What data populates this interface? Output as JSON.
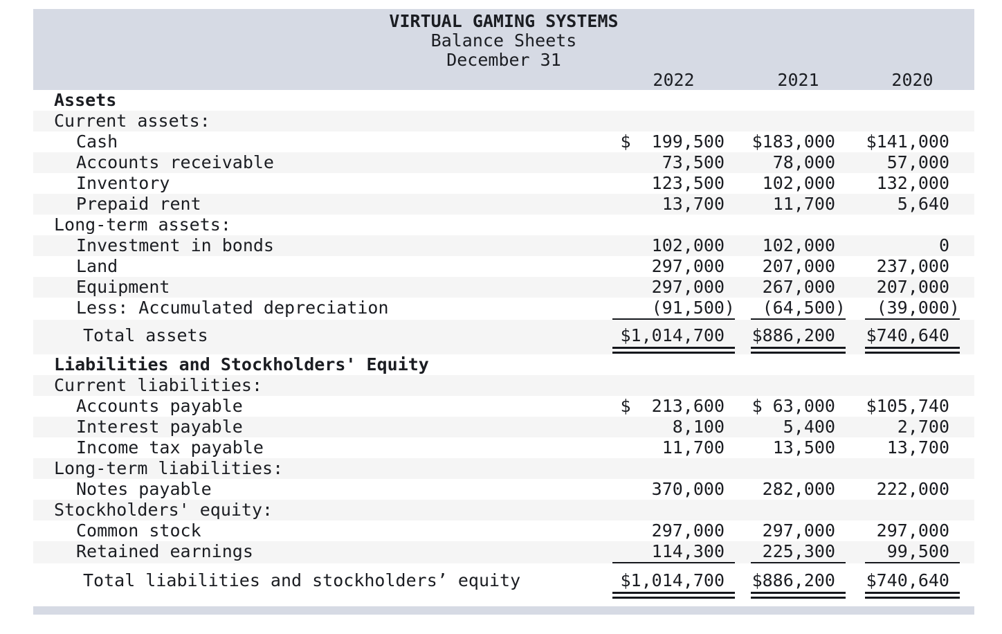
{
  "header": {
    "company": "VIRTUAL GAMING SYSTEMS",
    "statement": "Balance Sheets",
    "date": "December 31"
  },
  "columns": [
    "2022",
    "2021",
    "2020"
  ],
  "colors": {
    "band": "#d6dae4",
    "stripe": "#f5f5f5",
    "text": "#1b1d22",
    "rule": "#15171c"
  },
  "rows": [
    {
      "type": "section",
      "shade": false,
      "label": "Assets"
    },
    {
      "type": "subsection",
      "shade": true,
      "label": "Current assets:"
    },
    {
      "type": "item",
      "shade": false,
      "label": "Cash",
      "values": [
        "$  199,500",
        "$183,000",
        "$141,000"
      ]
    },
    {
      "type": "item",
      "shade": true,
      "label": "Accounts receivable",
      "values": [
        "73,500",
        "78,000",
        "57,000"
      ]
    },
    {
      "type": "item",
      "shade": false,
      "label": "Inventory",
      "values": [
        "123,500",
        "102,000",
        "132,000"
      ]
    },
    {
      "type": "item",
      "shade": true,
      "label": "Prepaid rent",
      "values": [
        "13,700",
        "11,700",
        "5,640"
      ]
    },
    {
      "type": "subsection",
      "shade": false,
      "label": "Long-term assets:"
    },
    {
      "type": "item",
      "shade": true,
      "label": "Investment in bonds",
      "values": [
        "102,000",
        "102,000",
        "0"
      ]
    },
    {
      "type": "item",
      "shade": false,
      "label": "Land",
      "values": [
        "297,000",
        "207,000",
        "237,000"
      ]
    },
    {
      "type": "item",
      "shade": true,
      "label": "Equipment",
      "values": [
        "297,000",
        "267,000",
        "207,000"
      ]
    },
    {
      "type": "item",
      "rule": true,
      "shade": false,
      "label": "Less: Accumulated depreciation",
      "values": [
        "(91,500)",
        "(64,500)",
        "(39,000)"
      ]
    },
    {
      "type": "total",
      "shade": true,
      "label": "Total assets",
      "values": [
        "$1,014,700",
        "$886,200",
        "$740,640"
      ]
    },
    {
      "type": "section",
      "shade": false,
      "label": "Liabilities and Stockholders' Equity"
    },
    {
      "type": "subsection",
      "shade": true,
      "label": "Current liabilities:"
    },
    {
      "type": "item",
      "shade": false,
      "label": "Accounts payable",
      "values": [
        "$  213,600",
        "$ 63,000",
        "$105,740"
      ]
    },
    {
      "type": "item",
      "shade": true,
      "label": "Interest payable",
      "values": [
        "8,100",
        "5,400",
        "2,700"
      ]
    },
    {
      "type": "item",
      "shade": false,
      "label": "Income tax payable",
      "values": [
        "11,700",
        "13,500",
        "13,700"
      ]
    },
    {
      "type": "subsection",
      "shade": true,
      "label": "Long-term liabilities:"
    },
    {
      "type": "item",
      "shade": false,
      "label": "Notes payable",
      "values": [
        "370,000",
        "282,000",
        "222,000"
      ]
    },
    {
      "type": "subsection",
      "shade": true,
      "label": "Stockholders' equity:"
    },
    {
      "type": "item",
      "shade": false,
      "label": "Common stock",
      "values": [
        "297,000",
        "297,000",
        "297,000"
      ]
    },
    {
      "type": "item",
      "rule": true,
      "shade": true,
      "label": "Retained earnings",
      "values": [
        "114,300",
        "225,300",
        "99,500"
      ]
    },
    {
      "type": "total-bottom",
      "shade": false,
      "label": "Total liabilities and stockholders’ equity",
      "values": [
        "$1,014,700",
        "$886,200",
        "$740,640"
      ]
    }
  ]
}
